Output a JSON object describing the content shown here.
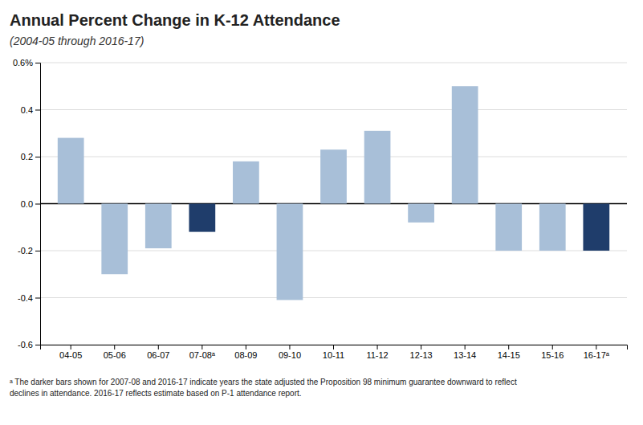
{
  "chart_data": {
    "type": "bar",
    "title": "Annual Percent Change in K-12 Attendance",
    "subtitle": "(2004-05 through 2016-17)",
    "categories": [
      "04-05",
      "05-06",
      "06-07",
      "07-08ᵃ",
      "08-09",
      "09-10",
      "10-11",
      "11-12",
      "12-13",
      "13-14",
      "14-15",
      "15-16",
      "16-17ᵃ"
    ],
    "values": [
      0.28,
      -0.3,
      -0.19,
      -0.12,
      0.18,
      -0.41,
      0.23,
      0.31,
      -0.08,
      0.5,
      -0.2,
      -0.2,
      -0.2
    ],
    "colors": [
      "#a8bfd8",
      "#a8bfd8",
      "#a8bfd8",
      "#1f3d6b",
      "#a8bfd8",
      "#a8bfd8",
      "#a8bfd8",
      "#a8bfd8",
      "#a8bfd8",
      "#a8bfd8",
      "#a8bfd8",
      "#a8bfd8",
      "#1f3d6b"
    ],
    "ylim": [
      -0.6,
      0.6
    ],
    "yticks": [
      -0.6,
      -0.4,
      -0.2,
      {
        "value": 0.0,
        "label": "0.0"
      },
      0.2,
      0.4,
      {
        "value": 0.6,
        "label": "0.6%"
      }
    ],
    "grid": true,
    "footnote": [
      "ᵃ The darker bars shown for 2007-08 and 2016-17 indicate years the state adjusted the Proposition 98 minimum guarantee downward to reflect",
      "declines in attendance. 2016-17 reflects estimate based on P-1 attendance report."
    ]
  }
}
